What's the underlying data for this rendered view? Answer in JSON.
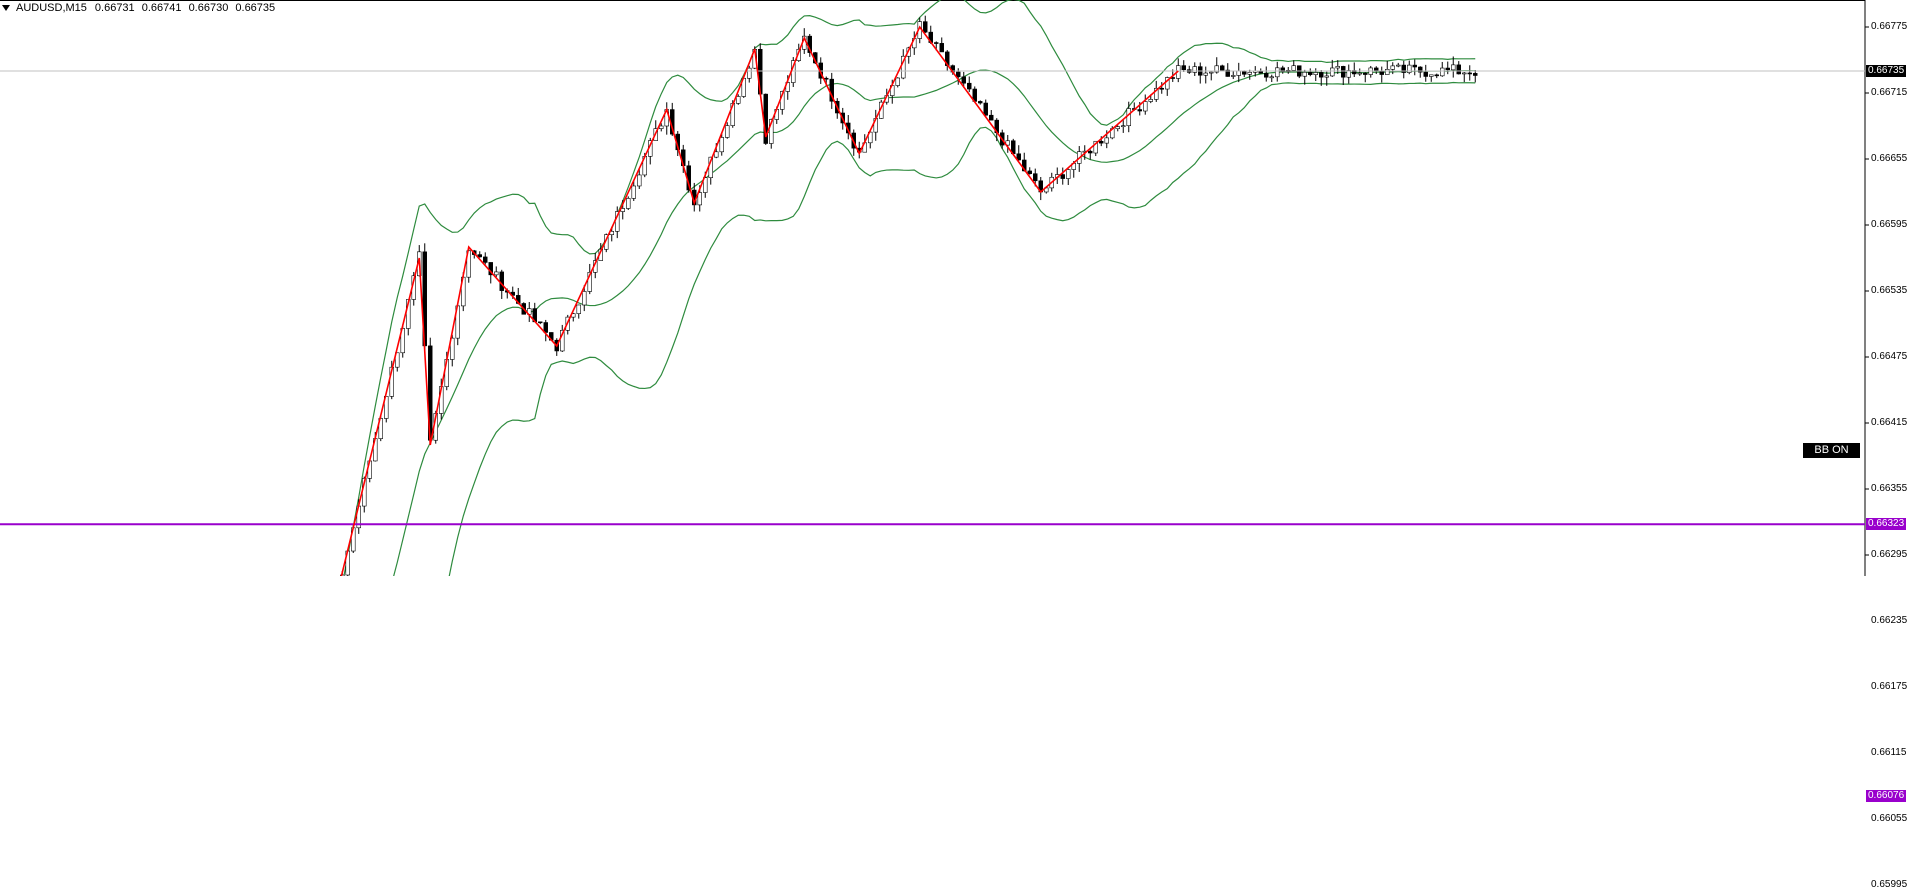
{
  "chart": {
    "symbol": "AUDUSD,M15",
    "ohlc": [
      "0.66731",
      "0.66741",
      "0.66730",
      "0.66735"
    ],
    "bb_toggle_label": "BB ON",
    "current_price": "0.66735",
    "levels": [
      {
        "label": "0.66323",
        "price": 0.66323
      },
      {
        "label": "0.66076",
        "price": 0.66076
      }
    ],
    "price_axis_ticks": [
      "0.66775",
      "0.66715",
      "0.66655",
      "0.66595",
      "0.66535",
      "0.66475",
      "0.66415",
      "0.66355",
      "0.66295",
      "0.66235",
      "0.66175",
      "0.66115",
      "0.66055",
      "0.65995"
    ],
    "colors": {
      "level_line": "#9900cc",
      "zigzag": "#ff0000",
      "bollinger": "#2e8b3e",
      "price_box": "#000000",
      "candle_up": "#ffffff",
      "candle_down": "#000000"
    }
  },
  "chart_data": {
    "type": "candlestick",
    "title": "AUDUSD,M15",
    "ylim": [
      0.6596,
      0.6683
    ],
    "zigzag_prices": [
      0.66095,
      0.66565,
      0.66395,
      0.66575,
      0.66485,
      0.667,
      0.66615,
      0.66755,
      0.66675,
      0.66765,
      0.6666,
      0.66775,
      0.66625,
      0.66735
    ]
  }
}
